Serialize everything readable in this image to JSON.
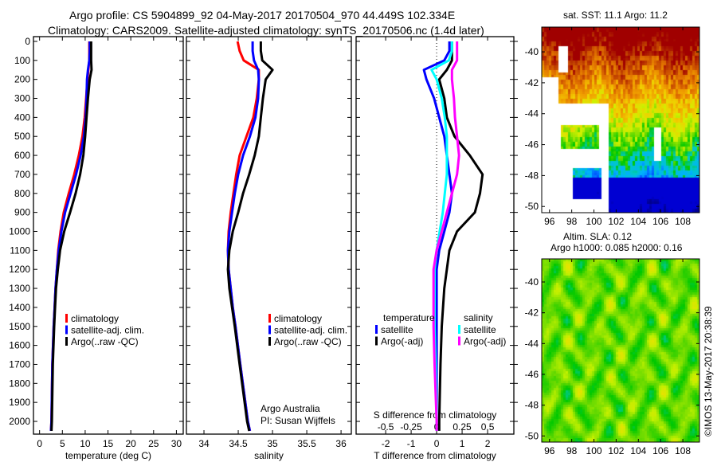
{
  "header": {
    "line1": "Argo profile: CS 5904899_92 04-May-2017 20170504_970 44.449S 102.334E",
    "line2": "Climatology: CARS2009. Satellite-adjusted climatology: synTS_20170506.nc (1.4d later)"
  },
  "credits": {
    "line1": "Argo Australia",
    "line2": "PI: Susan Wijffels"
  },
  "timestamp": "©IMOS 13-May-2017 20:38:39",
  "colors": {
    "climatology": "#ff0000",
    "satellite": "#0000ff",
    "argo": "#000000",
    "sal_satellite": "#00ffff",
    "sal_argo": "#ff00ff"
  },
  "chart_data": [
    {
      "type": "line",
      "id": "temperature",
      "xlabel": "temperature (deg C)",
      "ylabel": "depth",
      "xlim": [
        -1.34,
        31.5
      ],
      "ylim": [
        2067,
        -25
      ],
      "xticks": [
        0,
        5,
        10,
        15,
        20,
        25,
        30
      ],
      "yticks": [
        0,
        100,
        200,
        300,
        400,
        500,
        600,
        700,
        800,
        900,
        1000,
        1100,
        1200,
        1300,
        1400,
        1500,
        1600,
        1700,
        1800,
        1900,
        2000
      ],
      "depth": [
        0,
        50,
        100,
        150,
        200,
        300,
        400,
        500,
        600,
        700,
        800,
        900,
        1000,
        1100,
        1200,
        1300,
        1400,
        1500,
        1700,
        2000,
        2050
      ],
      "series": [
        {
          "name": "climatology",
          "color": "#ff0000",
          "values": [
            10.9,
            10.9,
            10.9,
            10.7,
            10.5,
            10.2,
            9.9,
            9.4,
            8.6,
            7.6,
            6.4,
            5.3,
            4.6,
            4.1,
            3.8,
            3.5,
            3.3,
            3.1,
            2.8,
            2.6,
            2.5
          ]
        },
        {
          "name": "satellite-adj. clim.",
          "color": "#0000ff",
          "values": [
            11.0,
            11.0,
            10.9,
            10.6,
            10.4,
            10.3,
            10.1,
            9.7,
            9.0,
            8.0,
            6.8,
            5.6,
            4.8,
            4.2,
            3.8,
            3.5,
            3.3,
            3.1,
            2.8,
            2.6,
            2.5
          ]
        },
        {
          "name": "Argo(..raw -QC)",
          "color": "#000000",
          "values": [
            11.3,
            11.3,
            11.3,
            11.4,
            11.0,
            10.6,
            10.3,
            10.0,
            9.6,
            8.9,
            7.9,
            6.7,
            5.4,
            4.5,
            4.0,
            3.6,
            3.4,
            3.2,
            2.9,
            2.7,
            2.6
          ]
        }
      ]
    },
    {
      "type": "line",
      "id": "salinity",
      "xlabel": "salinity",
      "ylabel": "depth",
      "xlim": [
        33.744,
        36.15
      ],
      "ylim": [
        2067,
        -25
      ],
      "xticks": [
        34,
        34.5,
        35,
        35.5,
        36
      ],
      "depth": [
        0,
        50,
        100,
        150,
        200,
        300,
        400,
        500,
        600,
        700,
        800,
        900,
        1000,
        1100,
        1200,
        1300,
        1400,
        1500,
        1700,
        2000,
        2050
      ],
      "series": [
        {
          "name": "climatology",
          "color": "#ff0000",
          "values": [
            34.49,
            34.52,
            34.58,
            34.8,
            34.8,
            34.77,
            34.72,
            34.62,
            34.52,
            34.47,
            34.43,
            34.39,
            34.36,
            34.35,
            34.36,
            34.39,
            34.42,
            34.46,
            34.53,
            34.64,
            34.67
          ]
        },
        {
          "name": "satellite-adj. clim.",
          "color": "#0000ff",
          "values": [
            34.71,
            34.71,
            34.73,
            34.79,
            34.8,
            34.79,
            34.75,
            34.67,
            34.57,
            34.5,
            34.45,
            34.41,
            34.37,
            34.35,
            34.36,
            34.39,
            34.42,
            34.46,
            34.53,
            34.64,
            34.67
          ]
        },
        {
          "name": "Argo(..raw -QC)",
          "color": "#000000",
          "values": [
            34.83,
            34.83,
            34.85,
            35.0,
            34.9,
            34.86,
            34.83,
            34.8,
            34.74,
            34.66,
            34.57,
            34.5,
            34.42,
            34.37,
            34.35,
            34.37,
            34.41,
            34.45,
            34.52,
            34.63,
            34.66
          ]
        }
      ]
    },
    {
      "type": "line",
      "id": "difference",
      "xlabel": "T difference from climatology",
      "x2label": "S difference from climatology",
      "xlim": [
        -3.16,
        3.03
      ],
      "ylim": [
        2067,
        -25
      ],
      "xticks": [
        -2,
        -1,
        0,
        1,
        2
      ],
      "x2ticks": [
        -0.5,
        -0.25,
        0,
        0.25,
        0.5
      ],
      "depth": [
        0,
        50,
        100,
        150,
        200,
        300,
        400,
        500,
        600,
        700,
        800,
        900,
        1000,
        1100,
        1200,
        1300,
        1400,
        1500,
        1700,
        2000,
        2050
      ],
      "legend_titles": {
        "temperature": "temperature",
        "salinity": "salinity"
      },
      "series": [
        {
          "group": "temperature",
          "name": "satellite",
          "color": "#0000ff",
          "unit": "T",
          "values": [
            0.5,
            0.5,
            0.3,
            -0.5,
            -0.4,
            -0.1,
            0.1,
            0.3,
            0.4,
            0.5,
            0.6,
            0.5,
            0.3,
            0.1,
            0,
            0,
            0,
            0,
            0,
            0,
            0
          ]
        },
        {
          "group": "temperature",
          "name": "Argo(-adj)",
          "color": "#000000",
          "unit": "T",
          "values": [
            0.6,
            0.6,
            0.6,
            0.4,
            0.1,
            0.3,
            0.4,
            0.7,
            1.3,
            1.8,
            1.7,
            1.5,
            0.8,
            0.5,
            0.4,
            0.3,
            0.25,
            0.2,
            0.15,
            0.1,
            0.1
          ]
        },
        {
          "group": "salinity",
          "name": "satellite",
          "color": "#00ffff",
          "unit": "S",
          "values": [
            0.15,
            0.15,
            0.12,
            -0.05,
            0,
            0.05,
            0.08,
            0.1,
            0.1,
            0.1,
            0.08,
            0.06,
            0.03,
            0,
            -0.02,
            -0.02,
            -0.02,
            -0.02,
            -0.01,
            0,
            0
          ]
        },
        {
          "group": "salinity",
          "name": "Argo(-adj)",
          "color": "#ff00ff",
          "unit": "S",
          "values": [
            0.2,
            0.2,
            0.2,
            0.15,
            0.15,
            0.17,
            0.18,
            0.2,
            0.22,
            0.2,
            0.15,
            0.1,
            0.05,
            0,
            -0.03,
            -0.03,
            -0.03,
            -0.03,
            -0.02,
            0,
            0
          ]
        }
      ]
    },
    {
      "type": "heatmap",
      "id": "sst-map",
      "title": "sat. SST: 11.1 Argo: 11.2",
      "xlim": [
        95.3,
        109.5
      ],
      "ylim": [
        -50.4,
        -38.4
      ],
      "xticks": [
        96,
        98,
        100,
        102,
        104,
        106,
        108
      ],
      "yticks": [
        -40,
        -42,
        -44,
        -46,
        -48,
        -50
      ],
      "colormap": [
        "#00008f",
        "#0000ff",
        "#0060ff",
        "#00b0ff",
        "#00c8c8",
        "#00c800",
        "#80e000",
        "#d0f000",
        "#f0d000",
        "#f0a000",
        "#e07000",
        "#c04000",
        "#a00000"
      ]
    },
    {
      "type": "heatmap",
      "id": "sla-map",
      "title": "Altim. SLA: 0.12",
      "subtitle": "Argo h1000: 0.085 h2000: 0.16",
      "xlim": [
        95.3,
        109.5
      ],
      "ylim": [
        -50.4,
        -38.5
      ],
      "xticks": [
        96,
        98,
        100,
        102,
        104,
        106,
        108
      ],
      "yticks": [
        -40,
        -42,
        -44,
        -46,
        -48,
        -50
      ],
      "colormap": [
        "#00c8c8",
        "#00c800",
        "#60d800",
        "#c0f000",
        "#f0e000"
      ]
    }
  ]
}
